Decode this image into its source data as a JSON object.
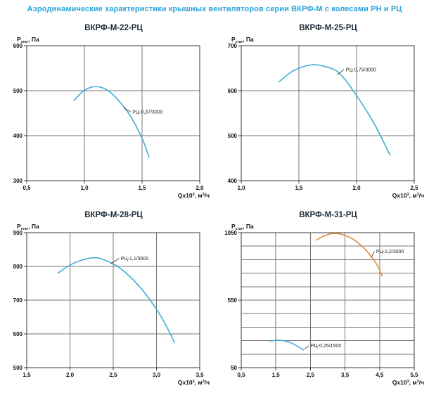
{
  "page_title": "Аэродинамические характеристики крышных вентиляторов серии ВКРФ-М с колесами РН и РЦ",
  "colors": {
    "page_title_blue": "#2BA3DC",
    "chart_title_dark": "#1C2B3A",
    "curve_blue": "#41ABD9",
    "curve_orange": "#DD8C40",
    "grid": "#757575",
    "axis": "#3A3A3A",
    "tick": "#111111",
    "leader": "#333333"
  },
  "axis_labels": {
    "y_main": "P",
    "y_sub": "стат",
    "y_rest": ", Па",
    "x_main": "Qx10",
    "x_sup": "3",
    "x_mid": ", м",
    "x_sup2": "3",
    "x_rest": "/ч"
  },
  "chart_data": [
    {
      "type": "line",
      "title": "ВКРФ-М-22-РЦ",
      "xlabel": "Qx10³, м³/ч",
      "ylabel": "Pстат, Па",
      "xlim": [
        0.5,
        2.0
      ],
      "ylim": [
        300,
        600
      ],
      "grid": true,
      "xticks": [
        {
          "v": 0.5,
          "label": "0,5"
        },
        {
          "v": 1.0,
          "label": "1,0"
        },
        {
          "v": 1.5,
          "label": "1,5"
        },
        {
          "v": 2.0,
          "label": "2,0"
        }
      ],
      "ygrid": [
        300,
        400,
        500,
        600
      ],
      "yticks": [
        {
          "v": 300,
          "label": "300"
        },
        {
          "v": 400,
          "label": "400"
        },
        {
          "v": 500,
          "label": "500"
        },
        {
          "v": 600,
          "label": "600"
        }
      ],
      "series": [
        {
          "name": "РЦ-0,37/3000",
          "color_key": "curve_blue",
          "points": [
            [
              0.91,
              478
            ],
            [
              1.0,
              501
            ],
            [
              1.1,
              509
            ],
            [
              1.2,
              501
            ],
            [
              1.3,
              477
            ],
            [
              1.4,
              443
            ],
            [
              1.5,
              394
            ],
            [
              1.56,
              352
            ]
          ],
          "label_at": [
            1.41,
            453
          ],
          "leader_to": [
            1.34,
            462
          ]
        }
      ]
    },
    {
      "type": "line",
      "title": "ВКРФ-М-25-РЦ",
      "xlabel": "Qx10³, м³/ч",
      "ylabel": "Pстат, Па",
      "xlim": [
        1.0,
        2.5
      ],
      "ylim": [
        400,
        700
      ],
      "grid": true,
      "xticks": [
        {
          "v": 1.0,
          "label": "1,0"
        },
        {
          "v": 1.5,
          "label": "1,5"
        },
        {
          "v": 2.0,
          "label": "2,0"
        },
        {
          "v": 2.5,
          "label": "2,5"
        }
      ],
      "ygrid": [
        400,
        500,
        600,
        700
      ],
      "yticks": [
        {
          "v": 400,
          "label": "400"
        },
        {
          "v": 500,
          "label": "500"
        },
        {
          "v": 600,
          "label": "600"
        },
        {
          "v": 700,
          "label": "700"
        }
      ],
      "series": [
        {
          "name": "РЦ-0,75/3000",
          "color_key": "curve_blue",
          "points": [
            [
              1.33,
              620
            ],
            [
              1.45,
              644
            ],
            [
              1.6,
              657
            ],
            [
              1.72,
              654
            ],
            [
              1.85,
              639
            ],
            [
              2.0,
              589
            ],
            [
              2.15,
              528
            ],
            [
              2.29,
              457
            ]
          ],
          "label_at": [
            1.9,
            647
          ],
          "leader_to": [
            1.83,
            635
          ]
        }
      ]
    },
    {
      "type": "line",
      "title": "ВКРФ-М-28-РЦ",
      "xlabel": "Qx10³, м³/ч",
      "ylabel": "Pстат, Па",
      "xlim": [
        1.5,
        3.5
      ],
      "ylim": [
        500,
        900
      ],
      "grid": true,
      "xticks": [
        {
          "v": 1.5,
          "label": "1,5"
        },
        {
          "v": 2.0,
          "label": "2,0"
        },
        {
          "v": 2.5,
          "label": "2,5"
        },
        {
          "v": 3.0,
          "label": "3,0"
        },
        {
          "v": 3.5,
          "label": "3,5"
        }
      ],
      "ygrid": [
        500,
        600,
        700,
        800,
        900
      ],
      "yticks": [
        {
          "v": 500,
          "label": "500"
        },
        {
          "v": 600,
          "label": "600"
        },
        {
          "v": 700,
          "label": "700"
        },
        {
          "v": 800,
          "label": "800"
        },
        {
          "v": 900,
          "label": "900"
        }
      ],
      "series": [
        {
          "name": "РЦ-1,1/3000",
          "color_key": "curve_blue",
          "points": [
            [
              1.86,
              780
            ],
            [
              2.0,
              804
            ],
            [
              2.13,
              818
            ],
            [
              2.28,
              826
            ],
            [
              2.4,
              819
            ],
            [
              2.55,
              800
            ],
            [
              2.7,
              768
            ],
            [
              2.85,
              726
            ],
            [
              3.0,
              673
            ],
            [
              3.1,
              630
            ],
            [
              3.21,
              574
            ]
          ],
          "label_at": [
            2.58,
            824
          ],
          "leader_to": [
            2.47,
            807
          ]
        }
      ]
    },
    {
      "type": "line",
      "title": "ВКРФ-М-31-РЦ",
      "xlabel": "Qx10³, м³/ч",
      "ylabel": "Pстат, Па",
      "xlim": [
        0.5,
        5.5
      ],
      "ylim": [
        50,
        1050
      ],
      "grid": true,
      "xticks": [
        {
          "v": 0.5,
          "label": "0,5"
        },
        {
          "v": 1.5,
          "label": "1,5"
        },
        {
          "v": 2.5,
          "label": "2,5"
        },
        {
          "v": 3.5,
          "label": "3,5"
        },
        {
          "v": 4.5,
          "label": "4,5"
        },
        {
          "v": 5.5,
          "label": "5,5"
        }
      ],
      "ygrid": [
        50,
        150,
        250,
        350,
        450,
        550,
        650,
        750,
        850,
        950,
        1050
      ],
      "yticks": [
        {
          "v": 50,
          "label": "50"
        },
        {
          "v": 550,
          "label": "550"
        },
        {
          "v": 1050,
          "label": "1050"
        }
      ],
      "series": [
        {
          "name": "РЦ-2,2/3000",
          "color_key": "curve_orange",
          "points": [
            [
              2.68,
              996
            ],
            [
              2.85,
              1020
            ],
            [
              3.0,
              1036
            ],
            [
              3.15,
              1044
            ],
            [
              3.3,
              1043
            ],
            [
              3.5,
              1030
            ],
            [
              3.7,
              1006
            ],
            [
              3.9,
              970
            ],
            [
              4.1,
              922
            ],
            [
              4.3,
              858
            ],
            [
              4.45,
              800
            ],
            [
              4.57,
              730
            ]
          ],
          "label_at": [
            4.38,
            912
          ],
          "leader_to": [
            4.26,
            868
          ]
        },
        {
          "name": "РЦ-0,25/1500",
          "color_key": "curve_blue",
          "points": [
            [
              1.33,
              246
            ],
            [
              1.5,
              253
            ],
            [
              1.65,
              252
            ],
            [
              1.8,
              245
            ],
            [
              1.95,
              232
            ],
            [
              2.1,
              212
            ],
            [
              2.3,
              182
            ]
          ],
          "label_at": [
            2.49,
            213
          ],
          "leader_to": [
            2.33,
            188
          ]
        }
      ]
    }
  ]
}
